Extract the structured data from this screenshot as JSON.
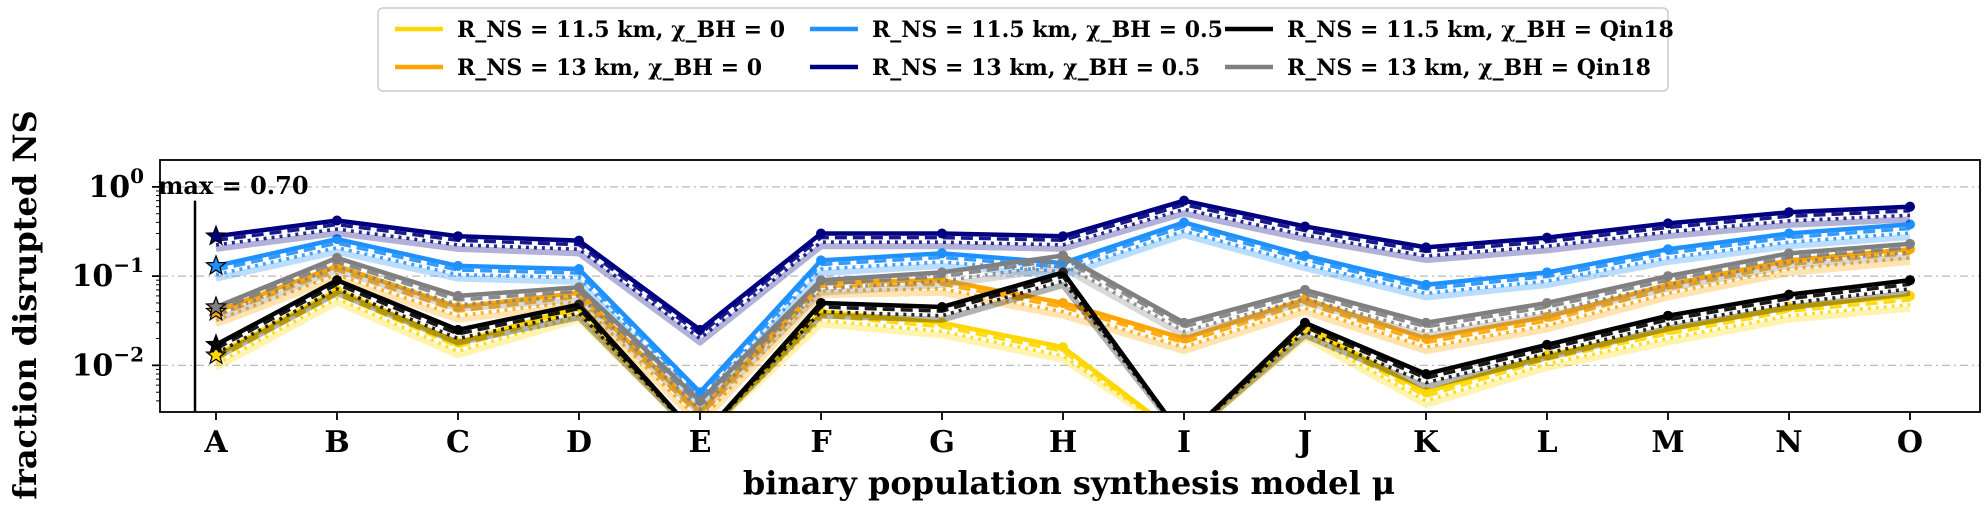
{
  "chart_data": {
    "type": "line",
    "xlabel": "binary population synthesis model μ",
    "ylabel": "fraction disrupted NS",
    "yscale": "log",
    "ylim": [
      0.003,
      2.0
    ],
    "grid": "horizontal dash-dot",
    "categories": [
      "A",
      "B",
      "C",
      "D",
      "E",
      "F",
      "G",
      "H",
      "I",
      "J",
      "K",
      "L",
      "M",
      "N",
      "O"
    ],
    "yticks": [
      {
        "value": 1,
        "base": "10",
        "exp": "0"
      },
      {
        "value": 0.1,
        "base": "10",
        "exp": "−1"
      },
      {
        "value": 0.01,
        "base": "10",
        "exp": "−2"
      }
    ],
    "annotation": {
      "text": "max = 0.70",
      "value": 0.7
    },
    "legend_position": "top-center",
    "legend": [
      {
        "label": "R_NS = 11.5 km, χ_BH = 0",
        "color": "#FFD700"
      },
      {
        "label": "R_NS = 13 km, χ_BH = 0",
        "color": "#FFA500"
      },
      {
        "label": "R_NS = 11.5 km, χ_BH = 0.5",
        "color": "#1E90FF"
      },
      {
        "label": "R_NS = 13 km, χ_BH = 0.5",
        "color": "#000080"
      },
      {
        "label": "R_NS = 11.5 km, χ_BH = Qin18",
        "color": "#000000"
      },
      {
        "label": "R_NS = 13 km, χ_BH = Qin18",
        "color": "#808080"
      }
    ],
    "series": [
      {
        "name": "R_NS = 11.5 km, χ_BH = 0",
        "color": "#FFD700",
        "values": [
          0.013,
          0.07,
          0.018,
          0.045,
          0.001,
          0.04,
          0.03,
          0.016,
          0.001,
          0.028,
          0.005,
          0.013,
          0.025,
          0.045,
          0.06
        ]
      },
      {
        "name": "R_NS = 13 km, χ_BH = 0",
        "color": "#FFA500",
        "values": [
          0.04,
          0.13,
          0.045,
          0.065,
          0.003,
          0.085,
          0.09,
          0.05,
          0.02,
          0.055,
          0.02,
          0.035,
          0.08,
          0.15,
          0.2
        ]
      },
      {
        "name": "R_NS = 11.5 km, χ_BH = 0.5",
        "color": "#1E90FF",
        "values": [
          0.13,
          0.26,
          0.13,
          0.12,
          0.005,
          0.15,
          0.18,
          0.14,
          0.4,
          0.17,
          0.08,
          0.11,
          0.2,
          0.3,
          0.38
        ]
      },
      {
        "name": "R_NS = 13 km, χ_BH = 0.5",
        "color": "#000080",
        "values": [
          0.28,
          0.42,
          0.28,
          0.25,
          0.025,
          0.3,
          0.3,
          0.28,
          0.7,
          0.36,
          0.21,
          0.27,
          0.39,
          0.52,
          0.6
        ]
      },
      {
        "name": "R_NS = 11.5 km, χ_BH = Qin18",
        "color": "#000000",
        "values": [
          0.017,
          0.09,
          0.025,
          0.048,
          0.001,
          0.05,
          0.045,
          0.11,
          0.001,
          0.03,
          0.008,
          0.017,
          0.036,
          0.062,
          0.09
        ]
      },
      {
        "name": "R_NS = 13 km, χ_BH = Qin18",
        "color": "#808080",
        "values": [
          0.045,
          0.16,
          0.06,
          0.075,
          0.004,
          0.09,
          0.11,
          0.17,
          0.03,
          0.07,
          0.03,
          0.05,
          0.1,
          0.18,
          0.23
        ]
      }
    ]
  }
}
